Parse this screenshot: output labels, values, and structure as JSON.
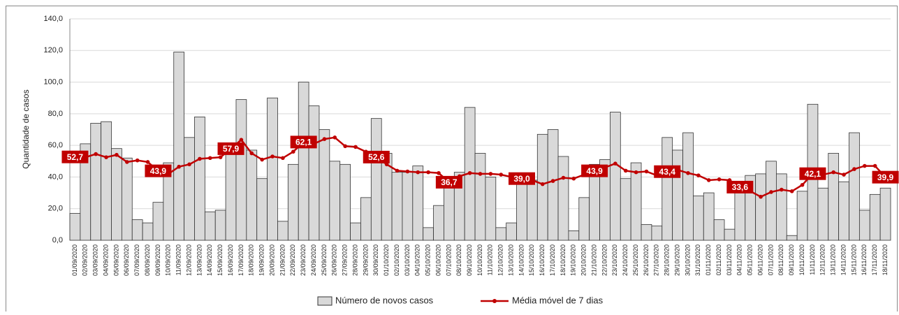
{
  "chart_data": {
    "type": "bar-line",
    "y_label": "Quantidade de casos",
    "categories": [
      "01/09/2020",
      "02/09/2020",
      "03/09/2020",
      "04/09/2020",
      "05/09/2020",
      "06/09/2020",
      "07/09/2020",
      "08/09/2020",
      "09/09/2020",
      "10/09/2020",
      "11/09/2020",
      "12/09/2020",
      "13/09/2020",
      "14/09/2020",
      "15/09/2020",
      "16/09/2020",
      "17/09/2020",
      "18/09/2020",
      "19/09/2020",
      "20/09/2020",
      "21/09/2020",
      "22/09/2020",
      "23/09/2020",
      "24/09/2020",
      "25/09/2020",
      "26/09/2020",
      "27/09/2020",
      "28/09/2020",
      "29/09/2020",
      "30/09/2020",
      "01/10/2020",
      "02/10/2020",
      "03/10/2020",
      "04/10/2020",
      "05/10/2020",
      "06/10/2020",
      "07/10/2020",
      "08/10/2020",
      "09/10/2020",
      "10/10/2020",
      "11/10/2020",
      "12/10/2020",
      "13/10/2020",
      "14/10/2020",
      "15/10/2020",
      "16/10/2020",
      "17/10/2020",
      "18/10/2020",
      "19/10/2020",
      "20/10/2020",
      "21/10/2020",
      "22/10/2020",
      "23/10/2020",
      "24/10/2020",
      "25/10/2020",
      "26/10/2020",
      "27/10/2020",
      "28/10/2020",
      "29/10/2020",
      "30/10/2020",
      "31/10/2020",
      "01/11/2020",
      "02/11/2020",
      "03/11/2020",
      "04/11/2020",
      "05/11/2020",
      "06/11/2020",
      "07/11/2020",
      "08/11/2020",
      "09/11/2020",
      "10/11/2020",
      "11/11/2020",
      "12/11/2020",
      "13/11/2020",
      "14/11/2020",
      "15/11/2020",
      "16/11/2020",
      "17/11/2020",
      "18/11/2020"
    ],
    "series": [
      {
        "name": "Número de novos casos",
        "type": "bar",
        "color": "#d9d9d9",
        "border": "#333333",
        "values": [
          17,
          61,
          74,
          75,
          58,
          52,
          13,
          11,
          24,
          49,
          119,
          65,
          78,
          18,
          19,
          57,
          89,
          57,
          39,
          90,
          12,
          48,
          100,
          85,
          70,
          50,
          48,
          11,
          27,
          77,
          55,
          43,
          43,
          47,
          8,
          22,
          38,
          43,
          84,
          55,
          40,
          8,
          11,
          38,
          38,
          67,
          70,
          53,
          6,
          27,
          48,
          51,
          81,
          39,
          49,
          10,
          9,
          65,
          57,
          68,
          28,
          30,
          13,
          7,
          30,
          41,
          42,
          50,
          42,
          3,
          31,
          86,
          33,
          55,
          37,
          68,
          19,
          29,
          33
        ]
      },
      {
        "name": "Média móvel de 7 dias",
        "type": "line",
        "color": "#c00000",
        "values": [
          52.7,
          52.5,
          54.5,
          52.5,
          54,
          49.5,
          50.5,
          49.5,
          43.9,
          42,
          46.5,
          48,
          51.5,
          52,
          52.5,
          57.9,
          63.5,
          55,
          51,
          53,
          52,
          56,
          62.1,
          61,
          64,
          65,
          59.5,
          59,
          56,
          52.6,
          48,
          44,
          43.5,
          43,
          43,
          42.5,
          36.7,
          40.5,
          42.5,
          42,
          42,
          41.5,
          40,
          39.0,
          38,
          35.5,
          37.5,
          39.5,
          39,
          41.5,
          43.9,
          46,
          48.5,
          44,
          43,
          43.5,
          41,
          43.4,
          44.5,
          42.5,
          41,
          38,
          38.5,
          38,
          33.6,
          31,
          27.5,
          30.5,
          32,
          31,
          35,
          42.1,
          41.5,
          43,
          41.5,
          45,
          47,
          47,
          39.9
        ],
        "value_labels": [
          "52,7",
          null,
          null,
          null,
          null,
          null,
          null,
          null,
          "43,9",
          null,
          null,
          null,
          null,
          null,
          null,
          "57,9",
          null,
          null,
          null,
          null,
          null,
          null,
          "62,1",
          null,
          null,
          null,
          null,
          null,
          null,
          "52,6",
          null,
          null,
          null,
          null,
          null,
          null,
          "36,7",
          null,
          null,
          null,
          null,
          null,
          null,
          "39,0",
          null,
          null,
          null,
          null,
          null,
          null,
          "43,9",
          null,
          null,
          null,
          null,
          null,
          null,
          "43,4",
          null,
          null,
          null,
          null,
          null,
          null,
          "33,6",
          null,
          null,
          null,
          null,
          null,
          null,
          "42,1",
          null,
          null,
          null,
          null,
          null,
          null,
          "39,9"
        ]
      }
    ],
    "ylim": [
      0,
      140
    ],
    "yticks": [
      {
        "value": 0,
        "label": "0,0"
      },
      {
        "value": 20,
        "label": "20,0"
      },
      {
        "value": 40,
        "label": "40,0"
      },
      {
        "value": 60,
        "label": "60,0"
      },
      {
        "value": 80,
        "label": "80,0"
      },
      {
        "value": 100,
        "label": "100,0"
      },
      {
        "value": 120,
        "label": "120,0"
      },
      {
        "value": 140,
        "label": "140,0"
      }
    ],
    "grid": true,
    "legend": "bottom"
  }
}
